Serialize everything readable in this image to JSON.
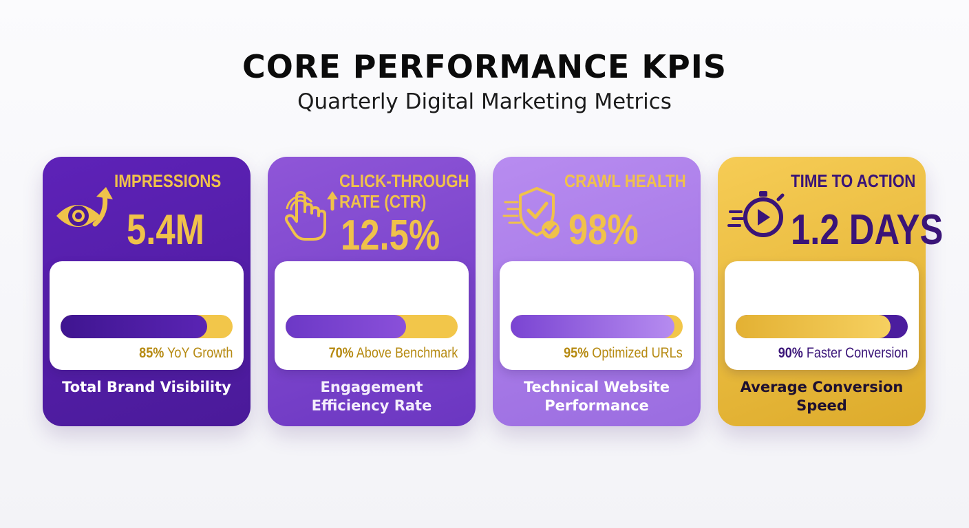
{
  "header": {
    "title": "CORE PERFORMANCE KPIS",
    "subtitle": "Quarterly Digital Marketing Metrics"
  },
  "cards": [
    {
      "label": "IMPRESSIONS",
      "value": "5.4M",
      "progress_percent": 85,
      "caption_value": "85%",
      "caption_text": "YoY Growth",
      "footer": "Total Brand Visibility",
      "icon": "eye-growth-icon"
    },
    {
      "label_line1": "CLICK-THROUGH",
      "label_line2": "RATE (CTR)",
      "value": "12.5%",
      "progress_percent": 70,
      "caption_value": "70%",
      "caption_text": "Above Benchmark",
      "footer_line1": "Engagement",
      "footer_line2": "Efficiency Rate",
      "icon": "hand-click-icon"
    },
    {
      "label": "CRAWL HEALTH",
      "value": "98%",
      "progress_percent": 95,
      "caption_value": "95%",
      "caption_text": "Optimized URLs",
      "footer_line1": "Technical Website",
      "footer_line2": "Performance",
      "icon": "shield-check-icon"
    },
    {
      "label": "TIME TO ACTION",
      "value": "1.2 DAYS",
      "progress_percent": 90,
      "caption_value": "90%",
      "caption_text": "Faster Conversion",
      "footer_line1": "Average Conversion",
      "footer_line2": "Speed",
      "icon": "stopwatch-icon"
    }
  ],
  "colors": {
    "purple_dark": "#4a1a99",
    "purple_mid": "#6b36c1",
    "purple_light": "#a77be8",
    "gold": "#f0c24a"
  }
}
